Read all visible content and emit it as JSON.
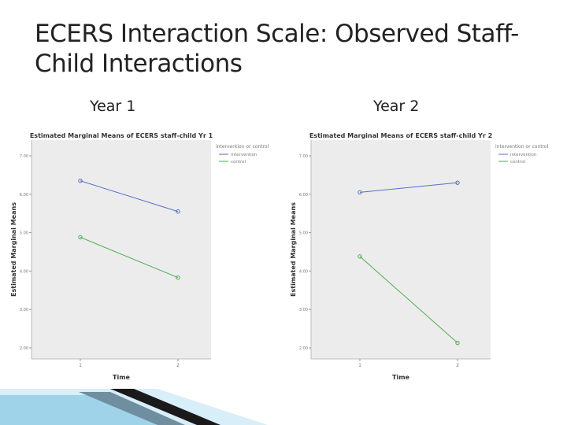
{
  "slide": {
    "title": "ECERS Interaction Scale: Observed Staff-Child Interactions",
    "title_line1": "ECERS Interaction Scale: Observed Staff-",
    "title_line2": "Child Interactions",
    "year1_label": "Year 1",
    "year2_label": "Year 2"
  },
  "colors": {
    "intervention": "#5470c6",
    "control": "#4caf50",
    "plot_background": "#ececec"
  },
  "chart_data": [
    {
      "type": "line",
      "title": "Estimated Marginal Means of ECERS staff-child Yr 1",
      "xlabel": "Time",
      "ylabel": "Estimated Marginal Means",
      "categories": [
        "1",
        "2"
      ],
      "ylim": [
        2.0,
        7.0
      ],
      "yticks": [
        "2.00",
        "3.00",
        "4.00",
        "5.00",
        "6.00",
        "7.00"
      ],
      "legend_title": "intervention or control",
      "legend_position": "top-right",
      "grid": false,
      "series": [
        {
          "name": "intervention",
          "values": [
            6.35,
            5.55
          ],
          "color": "#5470c6"
        },
        {
          "name": "control",
          "values": [
            4.88,
            3.83
          ],
          "color": "#4caf50"
        }
      ]
    },
    {
      "type": "line",
      "title": "Estimated Marginal Means of ECERS staff-child Yr 2",
      "xlabel": "Time",
      "ylabel": "Estimated Marginal Means",
      "categories": [
        "1",
        "2"
      ],
      "ylim": [
        2.0,
        7.0
      ],
      "yticks": [
        "2.00",
        "3.00",
        "4.00",
        "5.00",
        "6.00",
        "7.00"
      ],
      "legend_title": "intervention or control",
      "legend_position": "top-right",
      "grid": false,
      "series": [
        {
          "name": "intervention",
          "values": [
            6.05,
            6.3
          ],
          "color": "#5470c6"
        },
        {
          "name": "control",
          "values": [
            4.38,
            2.13
          ],
          "color": "#4caf50"
        }
      ]
    }
  ]
}
